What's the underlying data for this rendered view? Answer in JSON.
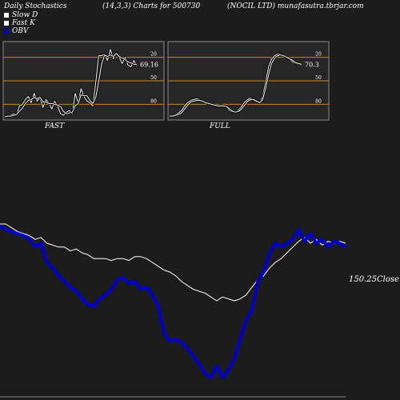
{
  "header": {
    "left": "Daily Stochastics",
    "center": "(14,3,3) Charts for 500730",
    "right": "(NOCIL LTD) munafasutra.tbrjar.com"
  },
  "legend": [
    {
      "label": "Slow  D",
      "color": "#ffffff"
    },
    {
      "label": "Fast K",
      "color": "#ffffff"
    },
    {
      "label": "OBV",
      "color": "#0000cc"
    }
  ],
  "colors": {
    "background": "#1c1c1c",
    "panel": "#262626",
    "level_line": "#c58a1e",
    "obv": "#0000cc",
    "price": "#ffffff"
  },
  "chart_data": [
    {
      "type": "line",
      "panel": "FAST",
      "label": "FAST",
      "ylim": [
        0,
        100
      ],
      "level_lines": [
        20,
        50,
        80
      ],
      "yticks": [
        "80",
        "50",
        "20"
      ],
      "last_value_label": "69.16",
      "series": [
        {
          "name": "Fast K",
          "values": [
            5,
            4,
            6,
            8,
            6,
            18,
            20,
            26,
            30,
            22,
            34,
            24,
            28,
            16,
            26,
            22,
            14,
            24,
            18,
            8,
            6,
            10,
            12,
            8,
            34,
            22,
            40,
            30,
            24,
            22,
            18,
            48,
            82,
            82,
            84,
            76,
            90,
            78,
            86,
            80,
            72,
            80,
            70,
            68,
            76,
            69
          ]
        },
        {
          "name": "Slow  D",
          "values": [
            4,
            5,
            5,
            6,
            7,
            11,
            15,
            21,
            25,
            26,
            29,
            27,
            29,
            23,
            23,
            21,
            21,
            20,
            19,
            17,
            11,
            8,
            9,
            10,
            18,
            21,
            32,
            31,
            31,
            25,
            21,
            29,
            49,
            71,
            83,
            81,
            83,
            81,
            85,
            81,
            79,
            77,
            74,
            73,
            71,
            71
          ]
        }
      ]
    },
    {
      "type": "line",
      "panel": "FULL",
      "label": "FULL",
      "ylim": [
        0,
        100
      ],
      "level_lines": [
        20,
        50,
        80
      ],
      "yticks": [
        "80",
        "50",
        "20"
      ],
      "last_value_label": "70.3",
      "series": [
        {
          "name": "Fast K",
          "values": [
            6,
            6,
            7,
            9,
            12,
            18,
            22,
            25,
            26,
            27,
            26,
            24,
            22,
            20,
            20,
            18,
            18,
            19,
            18,
            16,
            12,
            10,
            10,
            13,
            17,
            23,
            26,
            28,
            25,
            23,
            22,
            30,
            48,
            68,
            78,
            82,
            84,
            84,
            82,
            79,
            77,
            74,
            72,
            71,
            70
          ]
        },
        {
          "name": "Slow  D",
          "values": [
            5,
            5,
            6,
            7,
            9,
            14,
            19,
            23,
            24,
            25,
            25,
            24,
            22,
            21,
            20,
            19,
            18,
            18,
            18,
            17,
            14,
            11,
            10,
            11,
            14,
            19,
            24,
            26,
            26,
            24,
            22,
            26,
            40,
            58,
            72,
            79,
            82,
            83,
            82,
            80,
            78,
            76,
            73,
            72,
            71
          ]
        }
      ]
    },
    {
      "type": "line",
      "panel": "price-obv",
      "last_value_label": "150.25Close",
      "series": [
        {
          "name": "Price",
          "values": [
            60,
            60,
            56,
            52,
            50,
            48,
            44,
            46,
            40,
            38,
            36,
            36,
            32,
            34,
            30,
            28,
            24,
            24,
            24,
            22,
            24,
            24,
            22,
            26,
            26,
            24,
            20,
            16,
            12,
            10,
            6,
            0,
            -4,
            -8,
            -10,
            -12,
            -16,
            -20,
            -16,
            -18,
            -20,
            -18,
            -14,
            -6,
            2,
            6,
            14,
            20,
            24,
            30,
            36,
            42,
            46,
            40,
            44,
            38,
            42,
            40,
            42,
            40
          ]
        },
        {
          "name": "OBV",
          "values": [
            58,
            54,
            52,
            50,
            48,
            44,
            36,
            40,
            20,
            14,
            6,
            0,
            -6,
            -10,
            -18,
            -24,
            -26,
            -18,
            -14,
            -8,
            2,
            4,
            -2,
            0,
            -8,
            -6,
            -14,
            -26,
            -54,
            -62,
            -60,
            -64,
            -70,
            -78,
            -86,
            -96,
            -100,
            -88,
            -100,
            -92,
            -80,
            -60,
            -40,
            -30,
            0,
            10,
            30,
            40,
            36,
            40,
            44,
            54,
            42,
            50,
            40,
            44,
            36,
            42,
            40,
            36
          ]
        }
      ]
    }
  ]
}
